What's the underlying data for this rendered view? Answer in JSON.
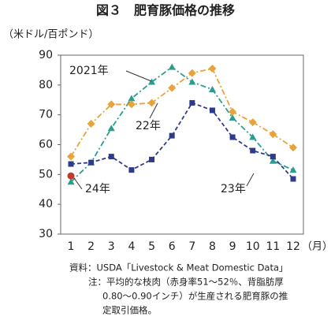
{
  "chart_data": {
    "type": "line",
    "title": "図３　肥育豚価格の推移",
    "y_label": "（米ドル/百ポンド）",
    "x_label": "（月）",
    "categories": [
      "1",
      "2",
      "3",
      "4",
      "5",
      "6",
      "7",
      "8",
      "9",
      "10",
      "11",
      "12"
    ],
    "ylim": [
      30,
      90
    ],
    "yticks": [
      30,
      40,
      50,
      60,
      70,
      80,
      90
    ],
    "series": [
      {
        "name": "2021年",
        "color": "#2a9d8f",
        "dash": "7 3 2 3",
        "marker": "triangle",
        "values": [
          47.5,
          54,
          65.5,
          75.5,
          81,
          86,
          81,
          78.5,
          69,
          62.5,
          54.5,
          51.5
        ]
      },
      {
        "name": "22年",
        "color": "#e8a33a",
        "dash": "7 3 2 3",
        "marker": "diamond",
        "values": [
          56,
          67,
          73.5,
          73.5,
          74,
          79,
          84,
          85.5,
          71,
          67.5,
          63.5,
          59
        ]
      },
      {
        "name": "23年",
        "color": "#2e3a8c",
        "dash": "5 3",
        "marker": "square",
        "values": [
          53.5,
          54,
          56,
          51.5,
          55,
          63,
          74,
          71.5,
          62.5,
          58,
          56,
          48.5
        ]
      },
      {
        "name": "24年",
        "color": "#c0392b",
        "dash": "",
        "marker": "circle",
        "values": [
          49.5,
          null,
          null,
          null,
          null,
          null,
          null,
          null,
          null,
          null,
          null,
          null
        ]
      }
    ],
    "notes": [
      "資料：USDA「Livestock & Meat Domestic Data」",
      "注：平均的な枝肉（赤身率51～52％、背脂肪厚",
      "0.80～0.90インチ）が生産される肥育豚の推",
      "定取引価格。"
    ]
  }
}
